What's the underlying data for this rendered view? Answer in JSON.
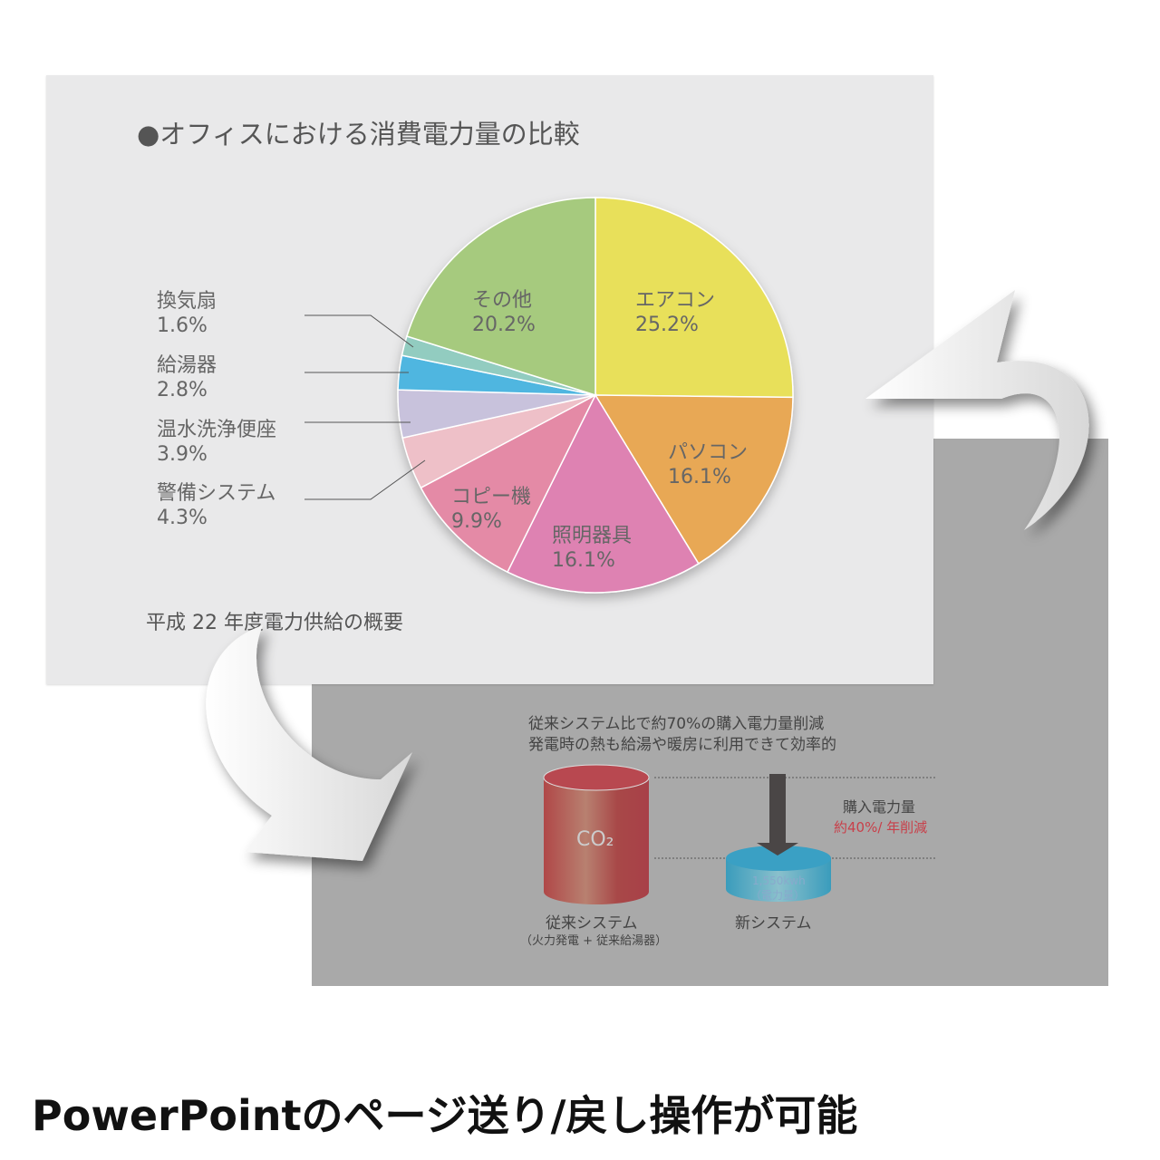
{
  "front_slide": {
    "title": "●オフィスにおける消費電力量の比較",
    "footnote": "平成 22 年度電力供給の概要"
  },
  "chart_data": {
    "type": "pie",
    "title": "●オフィスにおける消費電力量の比較",
    "slices": [
      {
        "label": "エアコン",
        "value": 25.2,
        "value_label": "25.2%",
        "color": "#e8e05a"
      },
      {
        "label": "パソコン",
        "value": 16.1,
        "value_label": "16.1%",
        "color": "#e8a855"
      },
      {
        "label": "照明器具",
        "value": 16.1,
        "value_label": "16.1%",
        "color": "#de82b2"
      },
      {
        "label": "コピー機",
        "value": 9.9,
        "value_label": "9.9%",
        "color": "#e48aa6"
      },
      {
        "label": "警備システム",
        "value": 4.3,
        "value_label": "4.3%",
        "color": "#eec0c8"
      },
      {
        "label": "温水洗浄便座",
        "value": 3.9,
        "value_label": "3.9%",
        "color": "#c8c2dc"
      },
      {
        "label": "給湯器",
        "value": 2.8,
        "value_label": "2.8%",
        "color": "#4fb6e0"
      },
      {
        "label": "換気扇",
        "value": 1.6,
        "value_label": "1.6%",
        "color": "#92ccc0"
      },
      {
        "label": "その他",
        "value": 20.2,
        "value_label": "20.2%",
        "color": "#a6ca7e"
      }
    ]
  },
  "back_slide": {
    "line1": "従来システム比で約70%の購入電力量削減",
    "line2": "発電時の熱も給湯や暖房に利用できて効率的",
    "co2": "CO₂",
    "old_label": "従来システム",
    "old_sub": "（火力発電 + 従来給湯器）",
    "new_label": "新システム",
    "new_value": "1,550kwh",
    "new_value_sub": "（電力量）",
    "purchase_label": "購入電力量",
    "reduction": "約40%/ 年削減",
    "reduction_color": "#c8404a"
  },
  "caption": "PowerPointのページ送り/戻し操作が可能"
}
